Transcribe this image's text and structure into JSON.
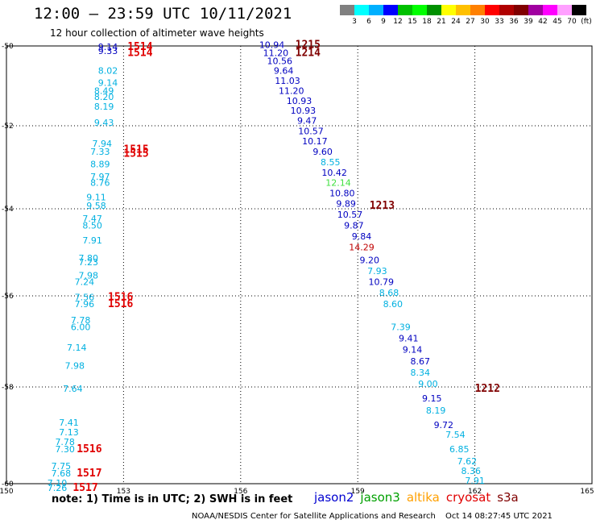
{
  "header": {
    "title": "12:00 – 23:59 UTC 10/11/2021",
    "subtitle": "12 hour collection of altimeter wave heights"
  },
  "colorbar": {
    "labels": [
      "3",
      "6",
      "9",
      "12",
      "15",
      "18",
      "21",
      "24",
      "27",
      "30",
      "33",
      "36",
      "39",
      "42",
      "45",
      "70",
      "(ft)"
    ],
    "colors": [
      "#808080",
      "#00ffff",
      "#00b0ff",
      "#0000ff",
      "#00c000",
      "#00ff00",
      "#009000",
      "#ffff00",
      "#ffc000",
      "#ff8000",
      "#ff0000",
      "#b00000",
      "#800000",
      "#a000a0",
      "#ff00ff",
      "#ffa0ff",
      "#000000"
    ]
  },
  "map": {
    "lon_labels": [
      "150",
      "153",
      "156",
      "159",
      "162",
      "165"
    ],
    "lat_labels": [
      "-50",
      "-52",
      "-54",
      "-56",
      "-58",
      "-60"
    ]
  },
  "tracks": [
    {
      "color": "#0000c0",
      "points": [
        {
          "lon": 152.6,
          "lat": -50.1,
          "v": "9.14"
        },
        {
          "lon": 152.6,
          "lat": -50.2,
          "v": "9.33"
        }
      ]
    },
    {
      "color": "#00b0e0",
      "points": [
        {
          "lon": 152.6,
          "lat": -50.7,
          "v": "8.02"
        },
        {
          "lon": 152.6,
          "lat": -51.0,
          "v": "9.14"
        },
        {
          "lon": 152.5,
          "lat": -51.2,
          "v": "8.49"
        },
        {
          "lon": 152.5,
          "lat": -51.35,
          "v": "8.20"
        },
        {
          "lon": 152.5,
          "lat": -51.6,
          "v": "8.19"
        },
        {
          "lon": 152.5,
          "lat": -52.0,
          "v": "9.43"
        },
        {
          "lon": 152.45,
          "lat": -52.5,
          "v": "7.94"
        },
        {
          "lon": 152.4,
          "lat": -52.7,
          "v": "7.33"
        },
        {
          "lon": 152.4,
          "lat": -53.0,
          "v": "8.89"
        },
        {
          "lon": 152.4,
          "lat": -53.3,
          "v": "7.97"
        },
        {
          "lon": 152.4,
          "lat": -53.45,
          "v": "8.76"
        },
        {
          "lon": 152.3,
          "lat": -53.8,
          "v": "9.11"
        },
        {
          "lon": 152.3,
          "lat": -54.0,
          "v": "9.58"
        },
        {
          "lon": 152.2,
          "lat": -54.3,
          "v": "7.47"
        },
        {
          "lon": 152.2,
          "lat": -54.45,
          "v": "8.50"
        },
        {
          "lon": 152.2,
          "lat": -54.8,
          "v": "7.91"
        },
        {
          "lon": 152.1,
          "lat": -55.2,
          "v": "7.80"
        },
        {
          "lon": 152.1,
          "lat": -55.3,
          "v": "7.23"
        },
        {
          "lon": 152.1,
          "lat": -55.6,
          "v": "7.98"
        },
        {
          "lon": 152.0,
          "lat": -55.75,
          "v": "7.24"
        },
        {
          "lon": 152.0,
          "lat": -56.1,
          "v": "7.56"
        },
        {
          "lon": 152.0,
          "lat": -56.25,
          "v": "7.96"
        },
        {
          "lon": 151.9,
          "lat": -56.6,
          "v": "7.78"
        },
        {
          "lon": 151.9,
          "lat": -56.75,
          "v": "6.00"
        },
        {
          "lon": 151.8,
          "lat": -57.2,
          "v": "7.14"
        },
        {
          "lon": 151.75,
          "lat": -57.6,
          "v": "7.98"
        },
        {
          "lon": 151.7,
          "lat": -58.1,
          "v": "7.64"
        },
        {
          "lon": 151.6,
          "lat": -58.8,
          "v": "7.41"
        },
        {
          "lon": 151.6,
          "lat": -59.0,
          "v": "7.13"
        },
        {
          "lon": 151.5,
          "lat": -59.2,
          "v": "7.78"
        },
        {
          "lon": 151.5,
          "lat": -59.35,
          "v": "7.30"
        },
        {
          "lon": 151.4,
          "lat": -59.7,
          "v": "7.75"
        },
        {
          "lon": 151.4,
          "lat": -59.85,
          "v": "7.68"
        },
        {
          "lon": 151.3,
          "lat": -60.05,
          "v": "7.10"
        },
        {
          "lon": 151.3,
          "lat": -60.15,
          "v": "7.26"
        }
      ]
    },
    {
      "color": "#0000c0",
      "points": [
        {
          "lon": 156.8,
          "lat": -50.05,
          "v": "10.94"
        },
        {
          "lon": 156.9,
          "lat": -50.25,
          "v": "11.20"
        },
        {
          "lon": 157.0,
          "lat": -50.45,
          "v": "10.56"
        },
        {
          "lon": 157.1,
          "lat": -50.7,
          "v": "9.64"
        },
        {
          "lon": 157.2,
          "lat": -50.95,
          "v": "11.03"
        },
        {
          "lon": 157.3,
          "lat": -51.2,
          "v": "11.20"
        },
        {
          "lon": 157.5,
          "lat": -51.45,
          "v": "10.93"
        },
        {
          "lon": 157.6,
          "lat": -51.7,
          "v": "10.93"
        },
        {
          "lon": 157.7,
          "lat": -51.95,
          "v": "9.47"
        },
        {
          "lon": 157.8,
          "lat": -52.2,
          "v": "10.57"
        },
        {
          "lon": 157.9,
          "lat": -52.45,
          "v": "10.17"
        },
        {
          "lon": 158.1,
          "lat": -52.7,
          "v": "9.60"
        },
        {
          "lon": 158.4,
          "lat": -53.2,
          "v": "10.42"
        },
        {
          "lon": 158.6,
          "lat": -53.7,
          "v": "10.80"
        },
        {
          "lon": 158.7,
          "lat": -53.95,
          "v": "9.89"
        },
        {
          "lon": 158.8,
          "lat": -54.2,
          "v": "10.57"
        },
        {
          "lon": 158.9,
          "lat": -54.45,
          "v": "9.87"
        },
        {
          "lon": 159.1,
          "lat": -54.7,
          "v": "9.84"
        },
        {
          "lon": 159.3,
          "lat": -55.25,
          "v": "9.20"
        },
        {
          "lon": 159.6,
          "lat": -55.75,
          "v": "10.79"
        },
        {
          "lon": 160.3,
          "lat": -57.0,
          "v": "9.41"
        },
        {
          "lon": 160.4,
          "lat": -57.25,
          "v": "9.14"
        },
        {
          "lon": 160.6,
          "lat": -57.5,
          "v": "8.67"
        },
        {
          "lon": 160.9,
          "lat": -58.3,
          "v": "9.15"
        },
        {
          "lon": 161.2,
          "lat": -58.85,
          "v": "9.72"
        }
      ]
    },
    {
      "color": "#00b0e0",
      "points": [
        {
          "lon": 158.3,
          "lat": -52.95,
          "v": "8.55"
        },
        {
          "lon": 159.5,
          "lat": -55.5,
          "v": "7.93"
        },
        {
          "lon": 159.8,
          "lat": -56.0,
          "v": "8.68"
        },
        {
          "lon": 159.9,
          "lat": -56.25,
          "v": "8.60"
        },
        {
          "lon": 160.1,
          "lat": -56.75,
          "v": "7.39"
        },
        {
          "lon": 160.6,
          "lat": -57.75,
          "v": "8.34"
        },
        {
          "lon": 160.8,
          "lat": -58.0,
          "v": "9.00"
        },
        {
          "lon": 161.0,
          "lat": -58.55,
          "v": "8.19"
        },
        {
          "lon": 161.5,
          "lat": -59.05,
          "v": "7.54"
        },
        {
          "lon": 161.6,
          "lat": -59.35,
          "v": "6.85"
        },
        {
          "lon": 161.8,
          "lat": -59.6,
          "v": "7.62"
        },
        {
          "lon": 161.9,
          "lat": -59.8,
          "v": "8.36"
        },
        {
          "lon": 162.0,
          "lat": -60.0,
          "v": "7.91"
        }
      ]
    },
    {
      "color": "#40e040",
      "points": [
        {
          "lon": 158.5,
          "lat": -53.45,
          "v": "12.14"
        }
      ]
    },
    {
      "color": "#c00000",
      "points": [
        {
          "lon": 159.1,
          "lat": -54.95,
          "v": "14.29"
        }
      ]
    }
  ],
  "pass_labels": [
    {
      "lon": 153.1,
      "lat": -50.1,
      "v": "1514",
      "color": "#e00000"
    },
    {
      "lon": 153.1,
      "lat": -50.25,
      "v": "1514",
      "color": "#e00000"
    },
    {
      "lon": 153.0,
      "lat": -52.65,
      "v": "1515",
      "color": "#e00000"
    },
    {
      "lon": 153.0,
      "lat": -52.75,
      "v": "1515",
      "color": "#e00000"
    },
    {
      "lon": 152.6,
      "lat": -56.1,
      "v": "1516",
      "color": "#e00000"
    },
    {
      "lon": 152.6,
      "lat": -56.25,
      "v": "1516",
      "color": "#e00000"
    },
    {
      "lon": 151.8,
      "lat": -59.35,
      "v": "1516",
      "color": "#e00000"
    },
    {
      "lon": 151.8,
      "lat": -59.85,
      "v": "1517",
      "color": "#e00000"
    },
    {
      "lon": 151.7,
      "lat": -60.15,
      "v": "1517",
      "color": "#e00000"
    },
    {
      "lon": 157.4,
      "lat": -50.05,
      "v": "1215",
      "color": "#800000"
    },
    {
      "lon": 157.4,
      "lat": -50.25,
      "v": "1214",
      "color": "#800000"
    },
    {
      "lon": 159.3,
      "lat": -54.0,
      "v": "1213",
      "color": "#800000"
    },
    {
      "lon": 162.0,
      "lat": -58.1,
      "v": "1212",
      "color": "#800000"
    }
  ],
  "footer": {
    "note": "note:  1) Time is in UTC;  2) SWH is in feet",
    "satellites": [
      {
        "name": "jason2",
        "color": "#0000d0"
      },
      {
        "name": "jason3",
        "color": "#00a000"
      },
      {
        "name": "altika",
        "color": "#ffa000"
      },
      {
        "name": "cryosat",
        "color": "#e00000"
      },
      {
        "name": "s3a",
        "color": "#800000"
      }
    ],
    "credit": "NOAA/NESDIS Center for Satellite Applications and Research",
    "timestamp": "Oct 14 08:27:45 UTC 2021"
  }
}
